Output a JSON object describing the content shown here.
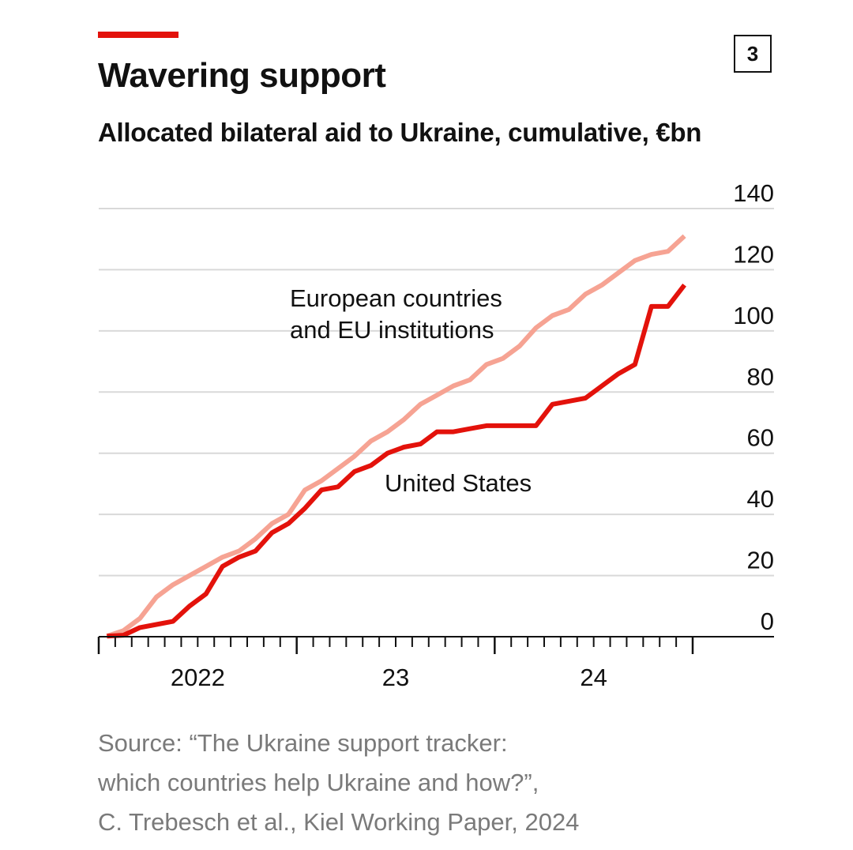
{
  "header": {
    "title": "Wavering support",
    "subtitle": "Allocated bilateral aid to Ukraine, cumulative, €bn",
    "chart_number": "3"
  },
  "source": {
    "lines": [
      "Source: “The Ukraine support tracker:",
      "which countries help Ukraine and how?”,",
      "C. Trebesch et al., Kiel Working Paper, 2024"
    ]
  },
  "colors": {
    "accent": "#e3120b",
    "us_line": "#e3120b",
    "europe_line": "#f6a393",
    "gridline": "#d9d9d9",
    "text": "#111111",
    "source_text": "#7a7a7a"
  },
  "chart_data": {
    "type": "line",
    "title": "Wavering support",
    "subtitle": "Allocated bilateral aid to Ukraine, cumulative, €bn",
    "xlabel": "",
    "ylabel": "",
    "ylim": [
      0,
      140
    ],
    "yticks": [
      0,
      20,
      40,
      60,
      80,
      100,
      120,
      140
    ],
    "ytick_labels": [
      "0",
      "20",
      "40",
      "60",
      "80",
      "100",
      "120",
      "140"
    ],
    "y_axis_side": "right",
    "grid": true,
    "x_unit": "months since Jan 2022",
    "xlim": [
      0,
      36
    ],
    "x_major_ticks": [
      0,
      12,
      24,
      36
    ],
    "x_minor_ticks": [
      1,
      2,
      3,
      4,
      5,
      6,
      7,
      8,
      9,
      10,
      11,
      13,
      14,
      15,
      16,
      17,
      18,
      19,
      20,
      21,
      22,
      23,
      25,
      26,
      27,
      28,
      29,
      30,
      31,
      32,
      33,
      34,
      35
    ],
    "x_tick_labels": [
      {
        "label": "2022",
        "x": 6
      },
      {
        "label": "23",
        "x": 18
      },
      {
        "label": "24",
        "x": 30
      }
    ],
    "x": [
      0.5,
      1.5,
      2.5,
      3.5,
      4.5,
      5.5,
      6.5,
      7.5,
      8.5,
      9.5,
      10.5,
      11.5,
      12.5,
      13.5,
      14.5,
      15.5,
      16.5,
      17.5,
      18.5,
      19.5,
      20.5,
      21.5,
      22.5,
      23.5,
      24.5,
      25.5,
      26.5,
      27.5,
      28.5,
      29.5,
      30.5,
      31.5,
      32.5,
      33.5,
      34.5,
      35.5
    ],
    "series": [
      {
        "name": "European countries and EU institutions",
        "color": "#f6a393",
        "values": [
          0.2,
          2,
          6,
          13,
          17,
          20,
          23,
          26,
          28,
          32,
          37,
          40,
          48,
          51,
          55,
          59,
          64,
          67,
          71,
          76,
          79,
          82,
          84,
          89,
          91,
          95,
          101,
          105,
          107,
          112,
          115,
          119,
          123,
          125,
          126,
          131
        ]
      },
      {
        "name": "United States",
        "color": "#e3120b",
        "values": [
          0.2,
          0.5,
          3,
          4,
          5,
          10,
          14,
          23,
          26,
          28,
          34,
          37,
          42,
          48,
          49,
          54,
          56,
          60,
          62,
          63,
          67,
          67,
          68,
          69,
          69,
          69,
          69,
          76,
          77,
          78,
          82,
          86,
          89,
          108,
          108,
          115
        ]
      }
    ],
    "annotations": [
      {
        "text_lines": [
          "European countries",
          "and EU institutions"
        ],
        "series": "European countries and EU institutions"
      },
      {
        "text_lines": [
          "United States"
        ],
        "series": "United States"
      }
    ]
  }
}
